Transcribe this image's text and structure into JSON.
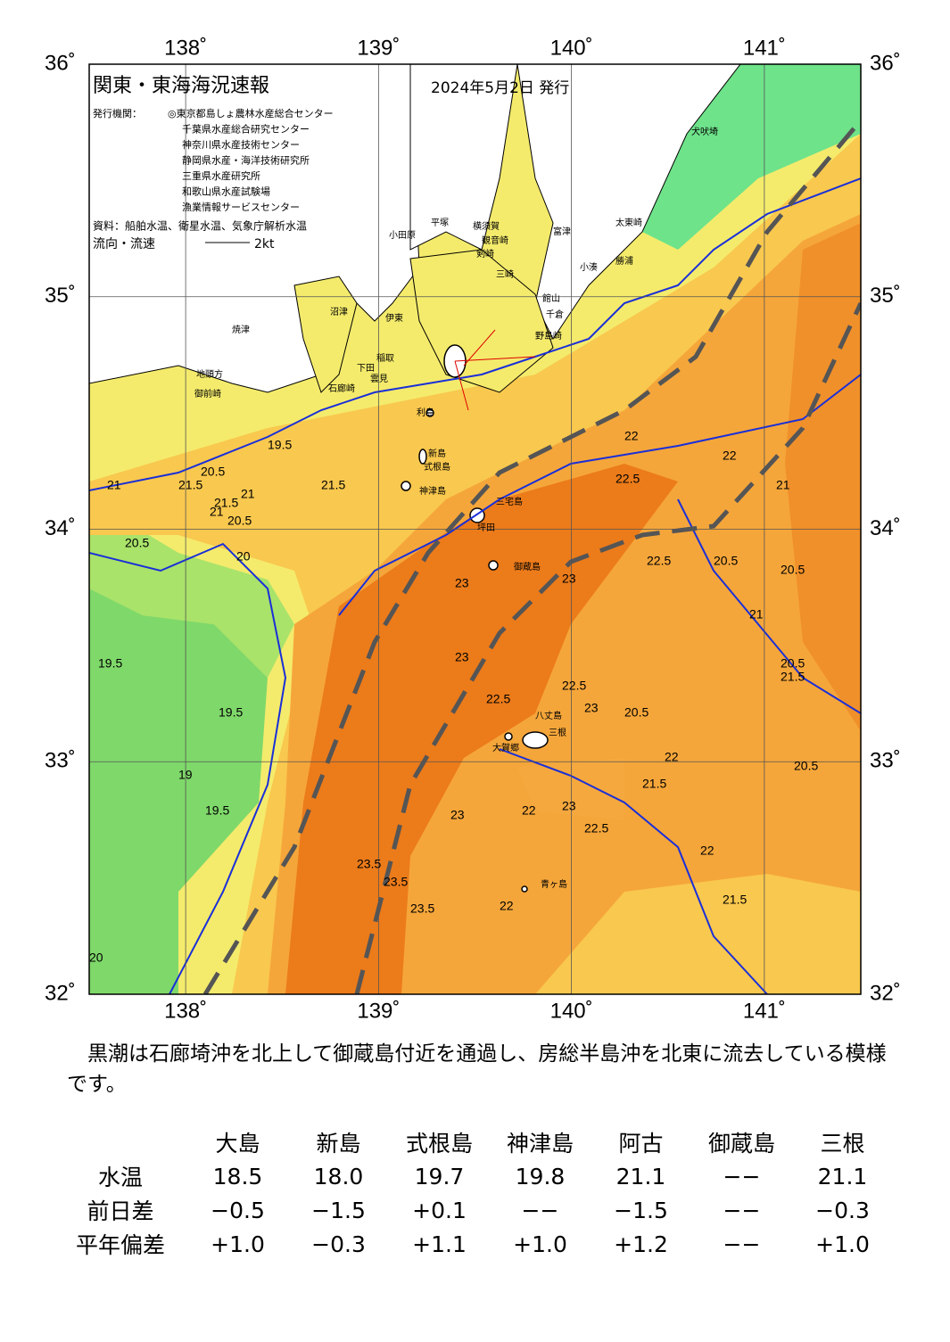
{
  "map": {
    "title": "関東・東海海況速報",
    "date": "2024年5月2日 発行",
    "publisher_label": "発行機関：",
    "publishers": [
      "◎東京都島しょ農林水産総合センター",
      "千葉県水産総合研究センター",
      "神奈川県水産技術センター",
      "静岡県水産・海洋技術研究所",
      "三重県水産研究所",
      "和歌山県水産試験場",
      "漁業情報サービスセンター"
    ],
    "source": "資料：船舶水温、衛星水温、気象庁解析水温",
    "flow_label": "流向・流速",
    "flow_scale": "2kt",
    "xticks": [
      {
        "value": 138,
        "label": "138˚"
      },
      {
        "value": 139,
        "label": "139˚"
      },
      {
        "value": 140,
        "label": "140˚"
      },
      {
        "value": 141,
        "label": "141˚"
      }
    ],
    "yticks": [
      {
        "value": 32,
        "label": "32˚"
      },
      {
        "value": 33,
        "label": "33˚"
      },
      {
        "value": 34,
        "label": "34˚"
      },
      {
        "value": 35,
        "label": "35˚"
      },
      {
        "value": 36,
        "label": "36˚"
      }
    ],
    "xlim": [
      137.5,
      141.5
    ],
    "ylim": [
      32,
      36
    ],
    "places": [
      "犬吠埼",
      "太東崎",
      "勝浦",
      "小湊",
      "富津",
      "館山",
      "千倉",
      "野島崎",
      "横須賀",
      "観音崎",
      "剣崎",
      "三崎",
      "平塚",
      "小田原",
      "沼津",
      "伊東",
      "稲取",
      "焼津",
      "下田",
      "雲見",
      "石廊崎",
      "地頭方",
      "御前崎",
      "利島",
      "新島",
      "式根島",
      "神津島",
      "三宅島",
      "坪田",
      "御蔵島",
      "八丈島",
      "三根",
      "大賀郷",
      "青ヶ島"
    ],
    "isotherm_labels": [
      "21",
      "21.5",
      "20.5",
      "21",
      "21.5",
      "20.5",
      "21",
      "21.5",
      "20.5",
      "20",
      "19.5",
      "19.5",
      "19.5",
      "19",
      "19.5",
      "22",
      "22",
      "22.5",
      "23",
      "23",
      "23",
      "22.5",
      "23",
      "23.5",
      "23.5",
      "23.5",
      "23",
      "22",
      "22",
      "22.5",
      "23",
      "22.5",
      "22",
      "20.5",
      "21.5",
      "20.5",
      "21",
      "20.5",
      "20.5",
      "21.5",
      "20.5",
      "21.5",
      "22",
      "22.5",
      "21",
      "20"
    ]
  },
  "comment": "　黒潮は石廊埼沖を北上して御蔵島付近を通過し、房総半島沖を北東に流去している模様です。",
  "table": {
    "columns": [
      "大島",
      "新島",
      "式根島",
      "神津島",
      "阿古",
      "御蔵島",
      "三根"
    ],
    "rows": [
      {
        "label": "水温",
        "values": [
          "18.5",
          "18.0",
          "19.7",
          "19.8",
          "21.1",
          "−−",
          "21.1"
        ]
      },
      {
        "label": "前日差",
        "values": [
          "−0.5",
          "−1.5",
          "+0.1",
          "−−",
          "−1.5",
          "−−",
          "−0.3"
        ]
      },
      {
        "label": "平年偏差",
        "values": [
          "+1.0",
          "−0.3",
          "+1.1",
          "+1.0",
          "+1.2",
          "−−",
          "+1.0"
        ]
      }
    ]
  }
}
